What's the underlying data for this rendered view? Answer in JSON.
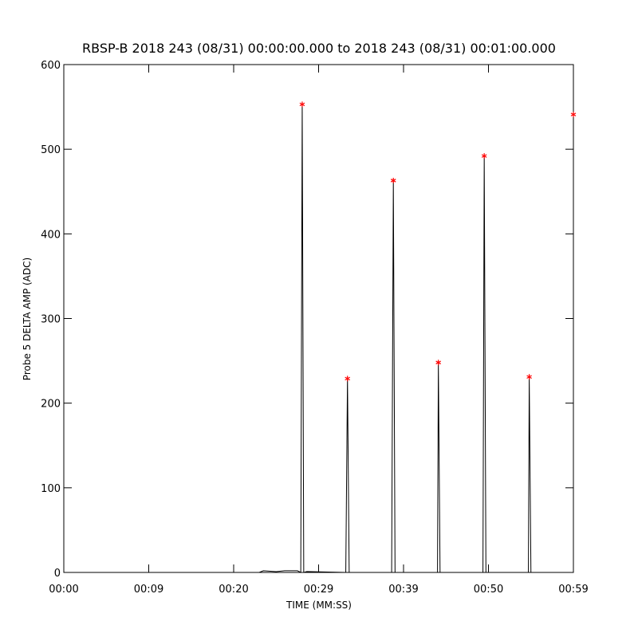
{
  "chart_data": {
    "type": "line",
    "title": "RBSP-B 2018 243 (08/31) 00:00:00.000 to 2018 243 (08/31) 00:01:00.000",
    "x_label": "TIME (MM:SS)",
    "y_label": "Probe 5 DELTA AMP (ADC)",
    "xlim": [
      0,
      60
    ],
    "xticks": [
      {
        "value": 0,
        "label": "00:00"
      },
      {
        "value": 10,
        "label": "00:09"
      },
      {
        "value": 20,
        "label": "00:20"
      },
      {
        "value": 30,
        "label": "00:29"
      },
      {
        "value": 40,
        "label": "00:39"
      },
      {
        "value": 50,
        "label": "00:50"
      },
      {
        "value": 60,
        "label": "00:59"
      }
    ],
    "ylim": [
      0,
      600
    ],
    "yticks": [
      0,
      100,
      200,
      300,
      400,
      500,
      600
    ],
    "series": [
      {
        "color": "#000000",
        "x": [
          0,
          23,
          23.5,
          25,
          26,
          27.5,
          27.9,
          28.07,
          28.25,
          28.6,
          33.2,
          33.4,
          33.6,
          38.6,
          38.8,
          39.0,
          44.0,
          44.1,
          44.3,
          49.35,
          49.5,
          49.7,
          54.7,
          54.8,
          55.0,
          60
        ],
        "values": [
          0,
          0,
          2,
          1,
          2,
          2,
          0,
          553,
          0,
          1,
          0,
          229,
          0,
          0,
          463,
          0,
          0,
          248,
          0,
          0,
          492,
          0,
          0,
          231,
          0,
          0
        ]
      },
      {
        "color": "#ff0000",
        "marker": "star",
        "x": [
          28.07,
          33.4,
          38.8,
          44.1,
          49.5,
          54.8,
          60
        ],
        "values": [
          553,
          229,
          463,
          248,
          492,
          231,
          541
        ]
      }
    ]
  }
}
